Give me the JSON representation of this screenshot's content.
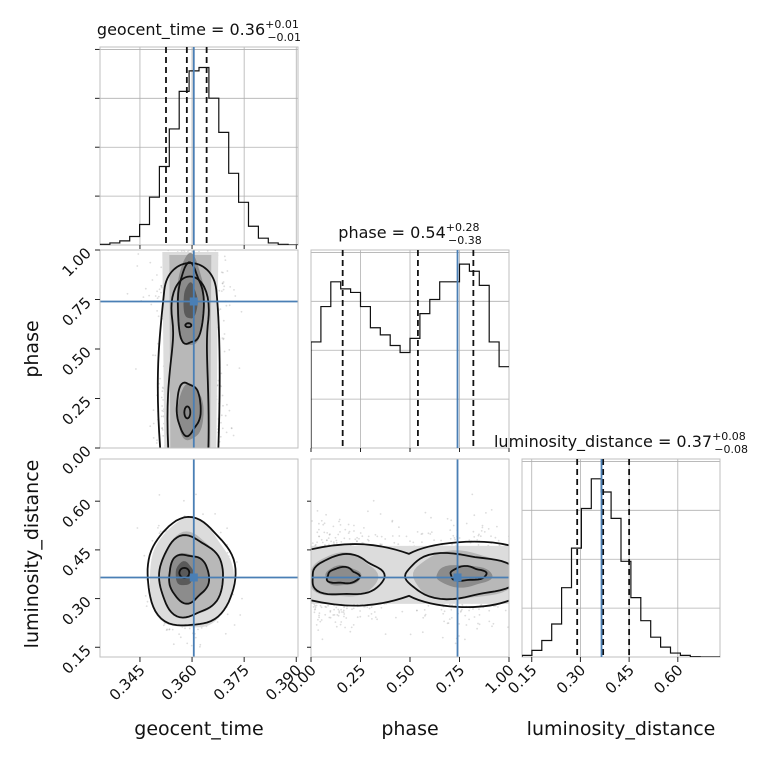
{
  "chart_data": {
    "type": "corner",
    "parameters": [
      "geocent_time",
      "phase",
      "luminosity_distance"
    ],
    "titles": [
      {
        "param": "geocent_time",
        "median": "0.36",
        "plus": "+0.01",
        "minus": "−0.01"
      },
      {
        "param": "phase",
        "median": "0.54",
        "plus": "+0.28",
        "minus": "−0.38"
      },
      {
        "param": "luminosity_distance",
        "median": "0.37",
        "plus": "+0.08",
        "minus": "−0.08"
      }
    ],
    "ranges": {
      "geocent_time": [
        0.3335,
        0.3905
      ],
      "phase": [
        0.0,
        1.0
      ],
      "luminosity_distance": [
        0.12,
        0.73
      ]
    },
    "ticks": {
      "geocent_time": [
        "0.345",
        "0.360",
        "0.375",
        "0.390"
      ],
      "phase": [
        "0.00",
        "0.25",
        "0.50",
        "0.75",
        "1.00"
      ],
      "luminosity_distance": [
        "0.15",
        "0.30",
        "0.45",
        "0.60"
      ]
    },
    "tick_values": {
      "geocent_time": [
        0.345,
        0.36,
        0.375,
        0.39
      ],
      "phase": [
        0.0,
        0.25,
        0.5,
        0.75,
        1.0
      ],
      "luminosity_distance": [
        0.15,
        0.3,
        0.45,
        0.6
      ]
    },
    "truths": {
      "geocent_time": 0.3605,
      "phase": 0.74,
      "luminosity_distance": 0.365
    },
    "quantiles": {
      "geocent_time": [
        0.3525,
        0.3585,
        0.3642
      ],
      "phase": [
        0.16,
        0.54,
        0.82
      ],
      "luminosity_distance": [
        0.29,
        0.37,
        0.45
      ]
    },
    "histograms": {
      "geocent_time": {
        "edges_start": 0.3335,
        "edge_step": 0.00285,
        "counts": [
          0.2,
          0.6,
          1.2,
          2.5,
          6.0,
          14.0,
          23.0,
          34.0,
          45.0,
          51.0,
          52.0,
          43.0,
          33.0,
          21.0,
          12.5,
          5.5,
          2.0,
          0.6,
          0.2,
          0.0
        ]
      },
      "phase": {
        "edges_start": 0.0,
        "edge_step": 0.05,
        "counts": [
          30.0,
          40.0,
          47.0,
          45.0,
          44.0,
          40.0,
          34.0,
          32.0,
          29.0,
          27.0,
          31.0,
          38.0,
          42.0,
          47.0,
          47.0,
          52.0,
          50.0,
          46.0,
          30.0,
          23.0
        ]
      },
      "luminosity_distance": {
        "edges_start": 0.12,
        "edge_step": 0.0305,
        "counts": [
          0.5,
          2.0,
          5.0,
          10.0,
          21.0,
          33.0,
          45.0,
          54.0,
          50.0,
          42.0,
          29.0,
          18.0,
          11.0,
          6.0,
          3.0,
          1.2,
          0.5,
          0.1,
          0.0,
          0.0
        ]
      }
    },
    "hist_ylim": {
      "geocent_time": [
        0,
        58
      ],
      "phase": [
        0,
        56
      ],
      "luminosity_distance": [
        0,
        60
      ]
    },
    "colors": {
      "truth": "#4a7fb5",
      "contour": "#111111",
      "scatter": "#9a9a9a",
      "grid": "#b0b0b0"
    },
    "grid": true
  }
}
